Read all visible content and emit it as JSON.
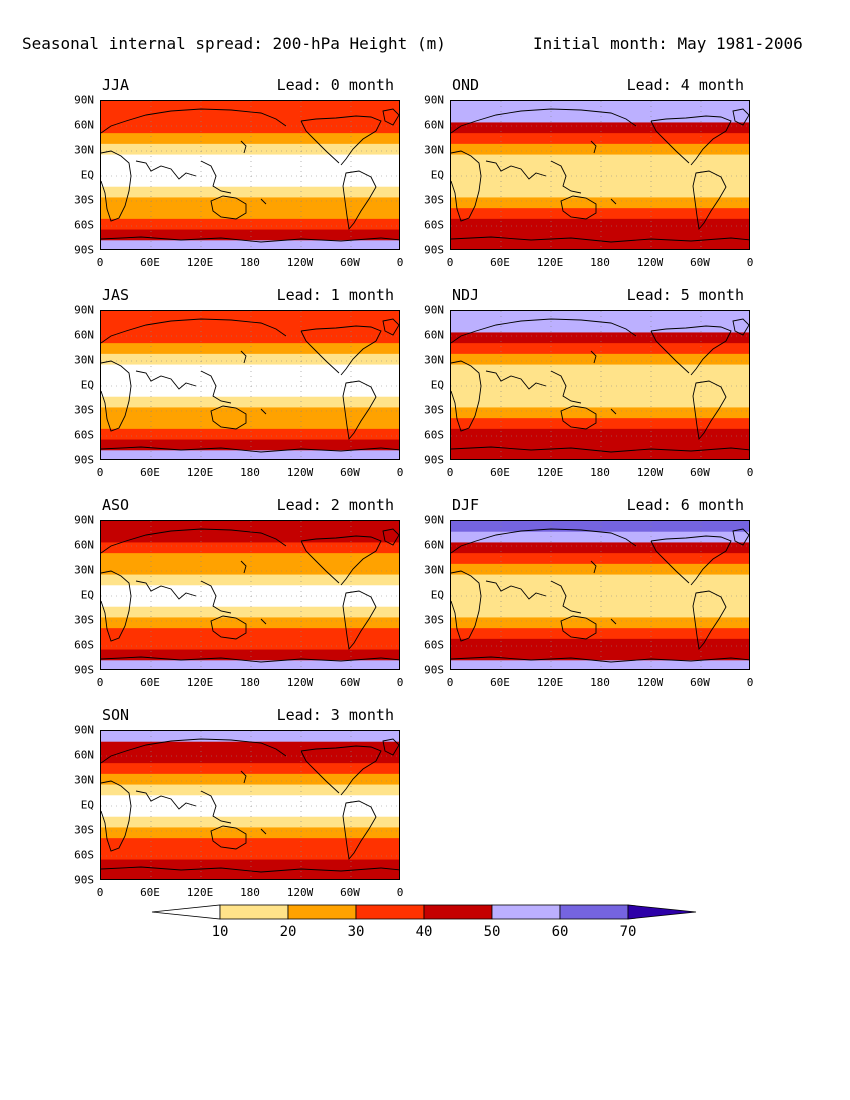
{
  "header": {
    "title": "Seasonal internal spread: 200-hPa Height (m)",
    "subtitle": "Initial month: May 1981-2006"
  },
  "axes": {
    "lat_labels": [
      "90N",
      "60N",
      "30N",
      "EQ",
      "30S",
      "60S",
      "90S"
    ],
    "lon_labels": [
      "0",
      "60E",
      "120E",
      "180",
      "120W",
      "60W",
      "0"
    ]
  },
  "panels": [
    {
      "season": "JJA",
      "lead": "Lead: 0 month",
      "bands": [
        32,
        36,
        32,
        25,
        18,
        8,
        3,
        7,
        15,
        22,
        28,
        38,
        48,
        58
      ]
    },
    {
      "season": "OND",
      "lead": "Lead: 4 month",
      "bands": [
        55,
        52,
        42,
        33,
        25,
        15,
        10,
        12,
        18,
        26,
        33,
        42,
        45,
        48
      ]
    },
    {
      "season": "JAS",
      "lead": "Lead: 1 month",
      "bands": [
        34,
        36,
        32,
        26,
        18,
        8,
        3,
        7,
        15,
        22,
        28,
        38,
        45,
        52
      ]
    },
    {
      "season": "NDJ",
      "lead": "Lead: 5 month",
      "bands": [
        58,
        54,
        45,
        35,
        26,
        18,
        12,
        13,
        18,
        25,
        32,
        40,
        44,
        46
      ]
    },
    {
      "season": "ASO",
      "lead": "Lead: 2 month",
      "bands": [
        45,
        42,
        36,
        28,
        20,
        10,
        5,
        8,
        15,
        22,
        30,
        38,
        44,
        50
      ]
    },
    {
      "season": "DJF",
      "lead": "Lead: 6 month",
      "bands": [
        62,
        58,
        48,
        38,
        28,
        18,
        12,
        13,
        18,
        26,
        34,
        42,
        46,
        52
      ]
    },
    {
      "season": "SON",
      "lead": "Lead: 3 month",
      "bands": [
        50,
        46,
        40,
        30,
        22,
        12,
        6,
        9,
        16,
        24,
        32,
        38,
        42,
        45
      ]
    }
  ],
  "colorbar": {
    "labels": [
      "10",
      "20",
      "30",
      "40",
      "50",
      "60",
      "70"
    ],
    "colors": [
      "#ffffff",
      "#ffe38a",
      "#ffa200",
      "#ff3200",
      "#c40000",
      "#bcb0ff",
      "#7564e0",
      "#2d00a8"
    ]
  }
}
